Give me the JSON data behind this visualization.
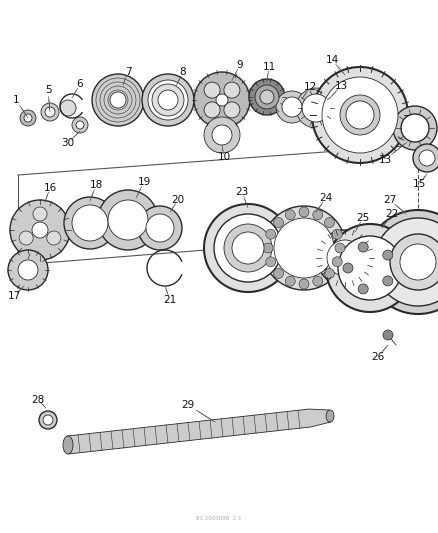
{
  "bg_color": "#ffffff",
  "fig_width": 4.38,
  "fig_height": 5.33,
  "dpi": 100,
  "line_color": "#2a2a2a",
  "text_color": "#111111",
  "part_font_size": 7.5,
  "watermark": "81 2000098  2 1"
}
